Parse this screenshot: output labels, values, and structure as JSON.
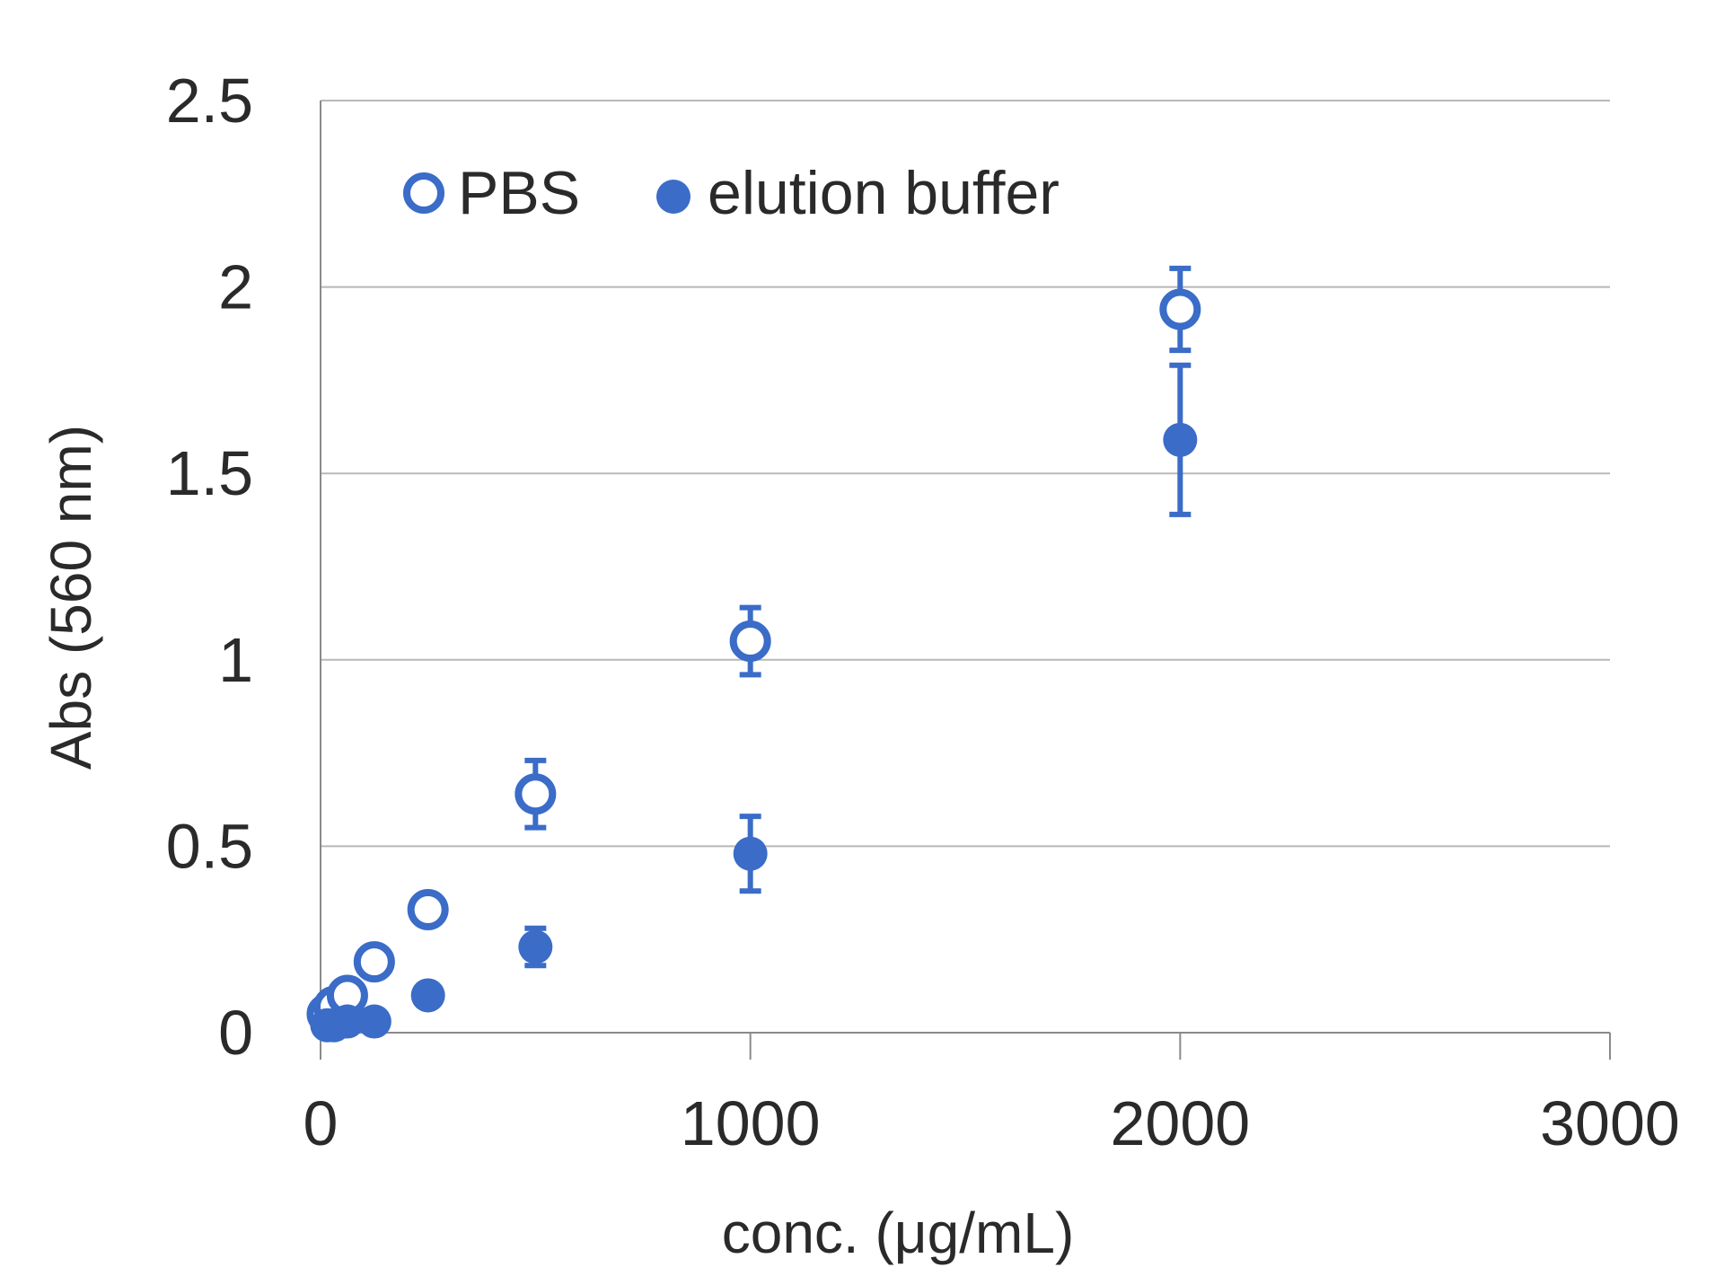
{
  "chart_data": {
    "type": "scatter",
    "title": "",
    "xlabel": "conc. (μg/mL)",
    "ylabel": "Abs (560 nm)",
    "xlim": [
      0,
      3000
    ],
    "ylim": [
      0,
      2.5
    ],
    "x_ticks": [
      "0",
      "1000",
      "2000",
      "3000"
    ],
    "y_ticks": [
      "0",
      "0.5",
      "1",
      "1.5",
      "2",
      "2.5"
    ],
    "grid": "horizontal",
    "legend_position": "top-left",
    "colors": {
      "series": "#3a6cc8"
    },
    "series": [
      {
        "name": "PBS",
        "marker": "open-circle",
        "points": [
          {
            "x": 15.6,
            "y": 0.05,
            "err": 0.01
          },
          {
            "x": 31.25,
            "y": 0.07,
            "err": 0.01
          },
          {
            "x": 62.5,
            "y": 0.1,
            "err": 0.01
          },
          {
            "x": 125,
            "y": 0.19,
            "err": 0.02
          },
          {
            "x": 250,
            "y": 0.33,
            "err": 0.04
          },
          {
            "x": 500,
            "y": 0.64,
            "err": 0.09
          },
          {
            "x": 1000,
            "y": 1.05,
            "err": 0.09
          },
          {
            "x": 2000,
            "y": 1.94,
            "err": 0.11
          }
        ]
      },
      {
        "name": "elution buffer",
        "marker": "filled-circle",
        "points": [
          {
            "x": 15.6,
            "y": 0.02,
            "err": 0.01
          },
          {
            "x": 31.25,
            "y": 0.02,
            "err": 0.01
          },
          {
            "x": 62.5,
            "y": 0.03,
            "err": 0.01
          },
          {
            "x": 125,
            "y": 0.03,
            "err": 0.01
          },
          {
            "x": 250,
            "y": 0.1,
            "err": 0.01
          },
          {
            "x": 500,
            "y": 0.23,
            "err": 0.05
          },
          {
            "x": 1000,
            "y": 0.48,
            "err": 0.1
          },
          {
            "x": 2000,
            "y": 1.59,
            "err": 0.2
          }
        ]
      }
    ]
  }
}
